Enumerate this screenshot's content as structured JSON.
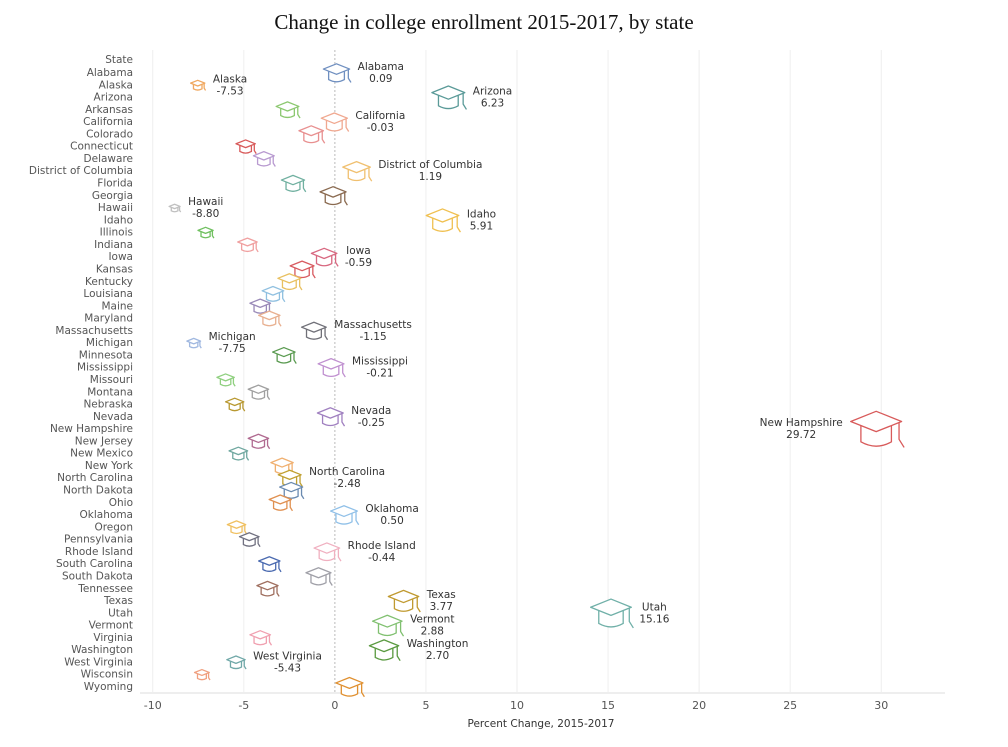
{
  "chart_data": {
    "type": "scatter",
    "title": "Change in college enrollment 2015-2017, by state",
    "ylabel": "State",
    "xlabel": "Percent Change, 2015-2017",
    "xlim": [
      -10.7,
      33.5
    ],
    "xticks": [
      -10,
      -5,
      0,
      5,
      10,
      15,
      20,
      25,
      30
    ],
    "grid": true,
    "categories": [
      "Alabama",
      "Alaska",
      "Arizona",
      "Arkansas",
      "California",
      "Colorado",
      "Connecticut",
      "Delaware",
      "District of Columbia",
      "Florida",
      "Georgia",
      "Hawaii",
      "Idaho",
      "Illinois",
      "Indiana",
      "Iowa",
      "Kansas",
      "Kentucky",
      "Louisiana",
      "Maine",
      "Maryland",
      "Massachusetts",
      "Michigan",
      "Minnesota",
      "Mississippi",
      "Missouri",
      "Montana",
      "Nebraska",
      "Nevada",
      "New Hampshire",
      "New Jersey",
      "New Mexico",
      "New York",
      "North Carolina",
      "North Dakota",
      "Ohio",
      "Oklahoma",
      "Oregon",
      "Pennsylvania",
      "Rhode Island",
      "South Carolina",
      "South Dakota",
      "Tennessee",
      "Texas",
      "Utah",
      "Vermont",
      "Virginia",
      "Washington",
      "West Virginia",
      "Wisconsin",
      "Wyoming"
    ],
    "values": [
      0.09,
      -7.53,
      6.23,
      -2.6,
      -0.03,
      -1.3,
      -4.9,
      -3.9,
      1.19,
      -2.3,
      -0.1,
      -8.8,
      5.91,
      -7.1,
      -4.8,
      -0.59,
      -1.8,
      -2.5,
      -3.4,
      -4.1,
      -3.6,
      -1.15,
      -7.75,
      -2.8,
      -0.21,
      -6.0,
      -4.2,
      -5.5,
      -0.25,
      29.72,
      -4.2,
      -5.3,
      -2.9,
      -2.48,
      -2.4,
      -3.0,
      0.5,
      -5.4,
      -4.7,
      -0.44,
      -3.6,
      -0.9,
      -3.7,
      3.77,
      15.16,
      2.88,
      -4.1,
      2.7,
      -5.43,
      -7.3,
      0.8
    ],
    "value_labels": [
      "0.09",
      "-7.53",
      "6.23",
      null,
      "-0.03",
      null,
      null,
      null,
      "1.19",
      null,
      null,
      "-8.80",
      "5.91",
      null,
      null,
      "-0.59",
      null,
      null,
      null,
      null,
      null,
      "-1.15",
      "-7.75",
      null,
      "-0.21",
      null,
      null,
      null,
      "-0.25",
      "29.72",
      null,
      null,
      null,
      "-2.48",
      null,
      null,
      "0.50",
      null,
      null,
      "-0.44",
      null,
      null,
      null,
      "3.77",
      "15.16",
      "2.88",
      null,
      "2.70",
      "-5.43",
      null,
      null
    ],
    "colors": [
      "#6f8fc0",
      "#f0a860",
      "#5a9a98",
      "#8cc870",
      "#f0a890",
      "#e89090",
      "#d85a5a",
      "#b89ad0",
      "#f0c070",
      "#70b0a0",
      "#8a6a50",
      "#c0c0c0",
      "#f0c050",
      "#70c060",
      "#f0a0a0",
      "#d86880",
      "#d85a60",
      "#e8c060",
      "#90c0e0",
      "#9a8ab8",
      "#e8b090",
      "#707078",
      "#a0b8e0",
      "#5a9a50",
      "#c090d0",
      "#90d080",
      "#a0a0a0",
      "#b89830",
      "#a080c0",
      "#d85a5a",
      "#b06a90",
      "#70a8a0",
      "#f0b070",
      "#c0a030",
      "#6a8ab0",
      "#e09050",
      "#90c0e8",
      "#f0c060",
      "#707080",
      "#f0b0c0",
      "#4a6ab0",
      "#a0a0a8",
      "#a07060",
      "#c09a30",
      "#70b0a8",
      "#80c070",
      "#f0a0b0",
      "#5a9a40",
      "#70a8a8",
      "#f0a080",
      "#e09030"
    ]
  }
}
